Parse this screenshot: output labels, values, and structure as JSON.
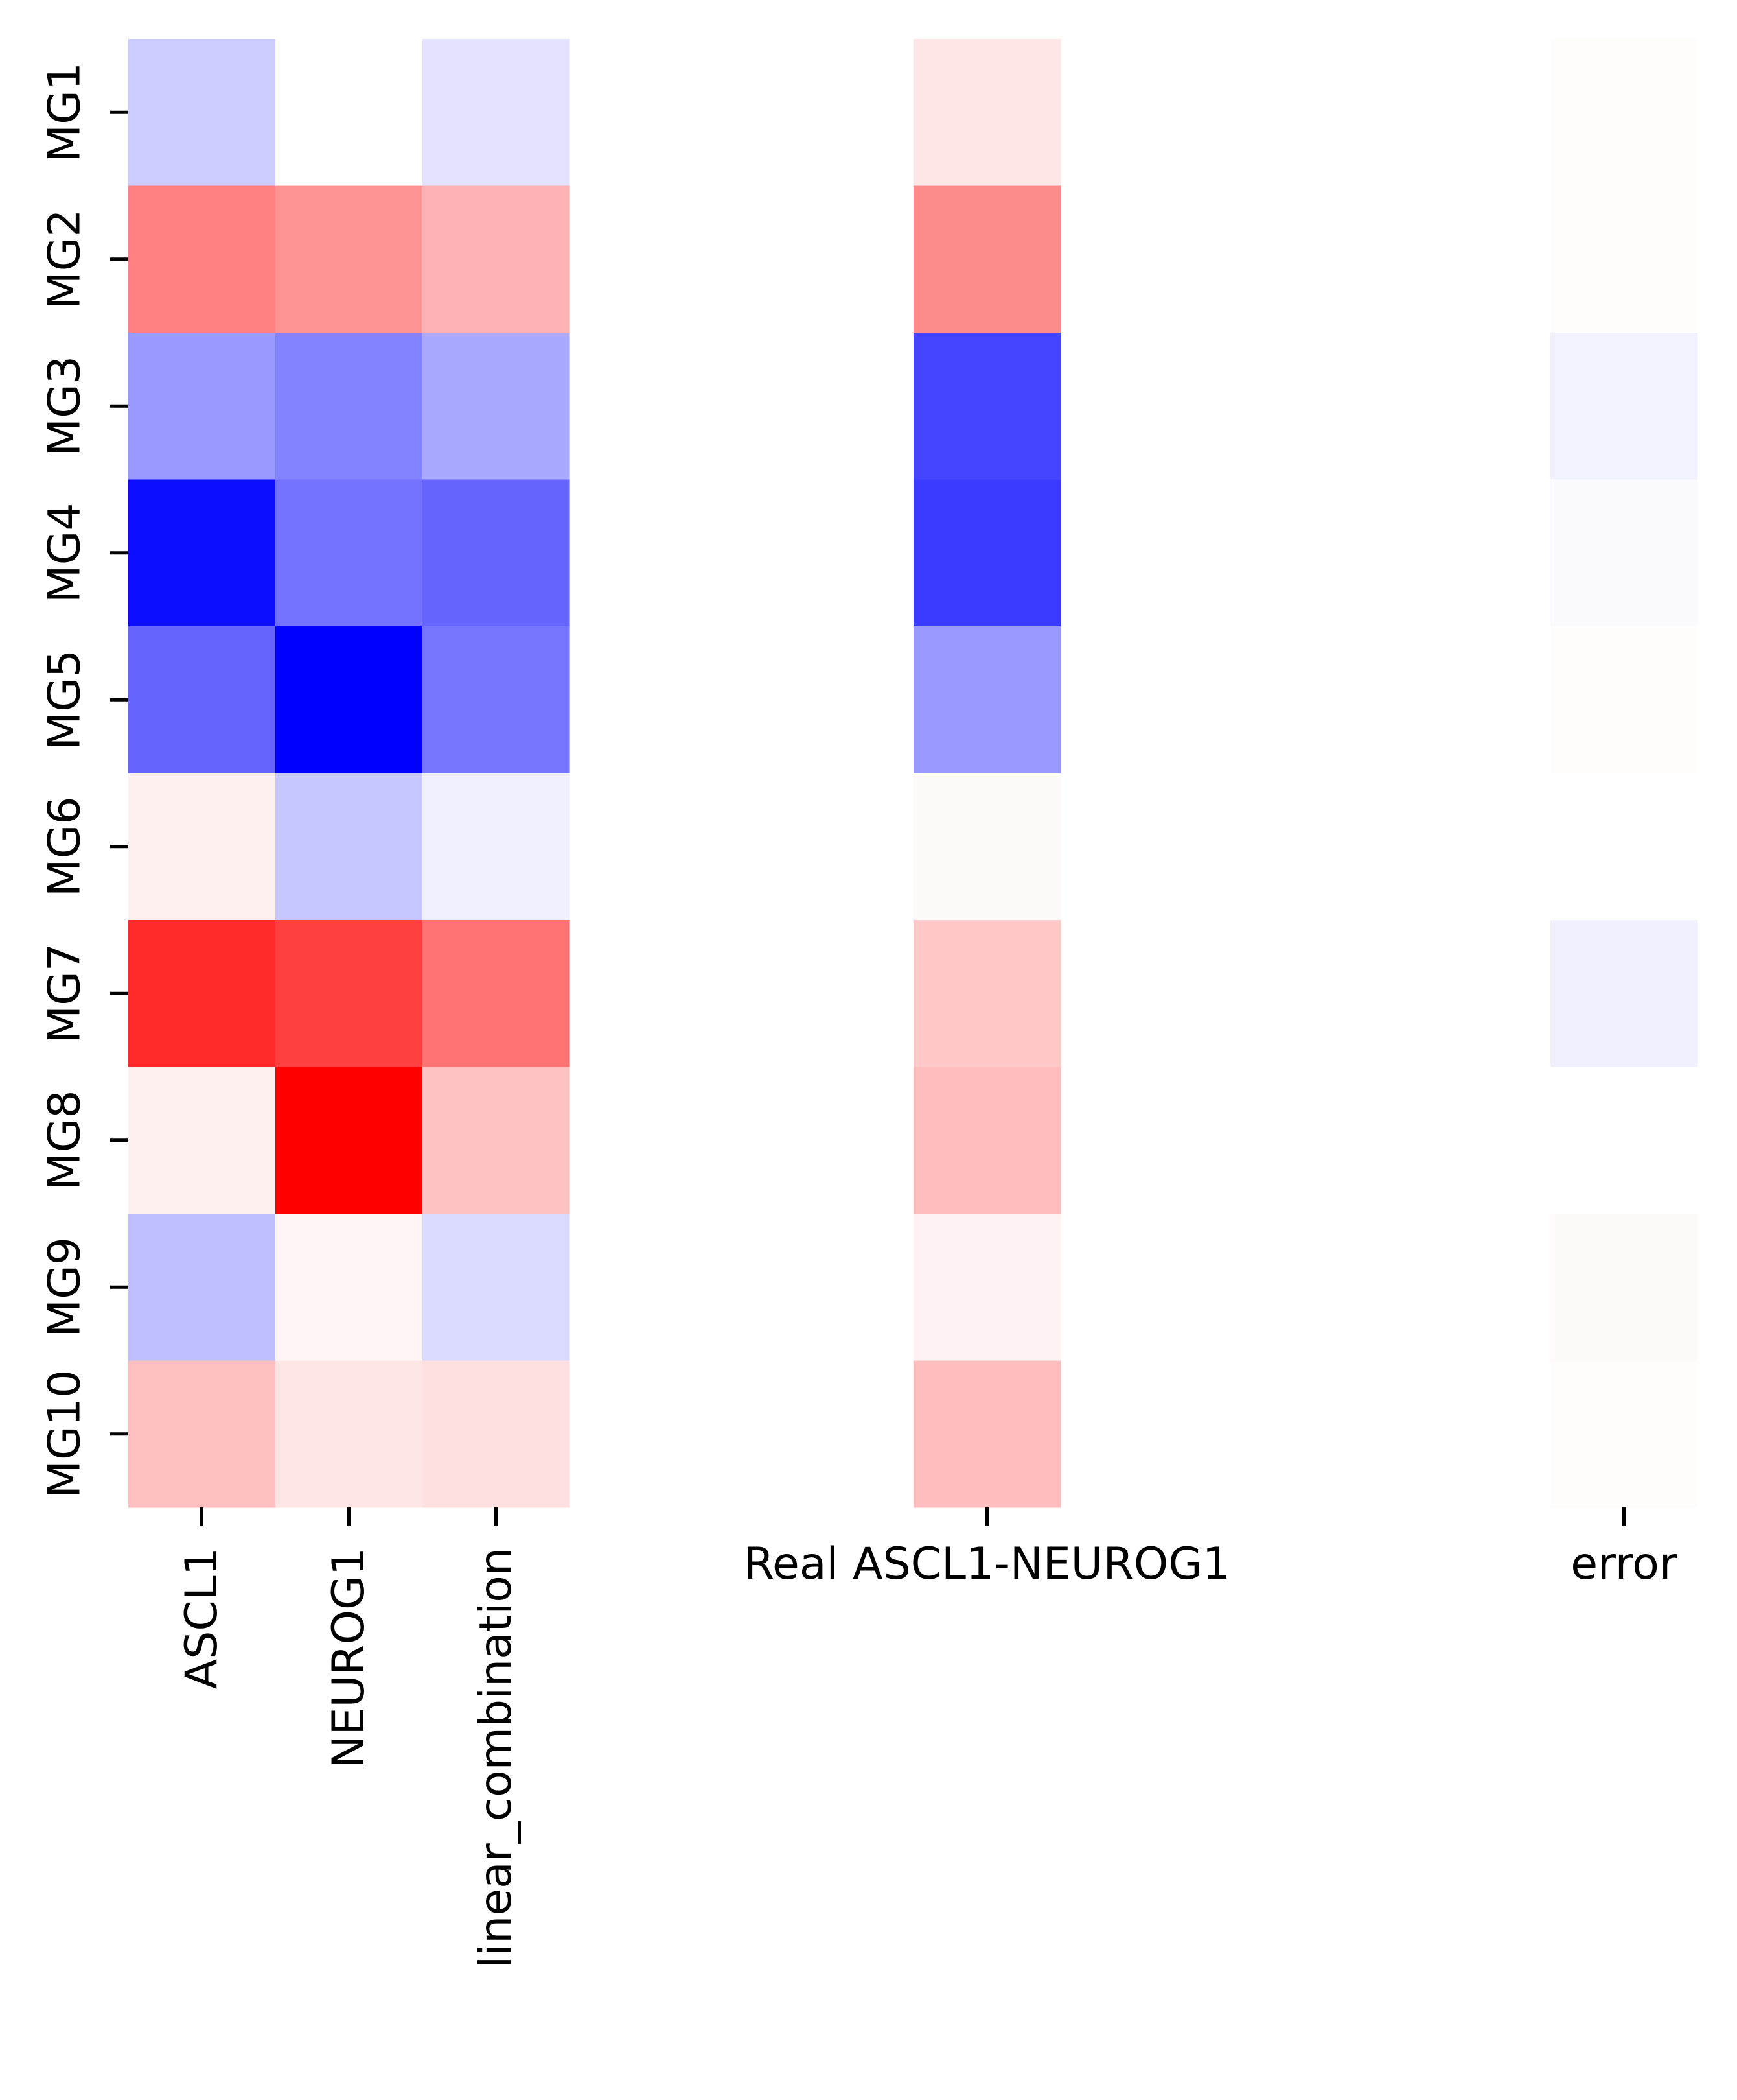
{
  "chart_data": {
    "type": "heatmap",
    "colormap": "bwr",
    "colorbar": false,
    "rows": [
      "MG1",
      "MG2",
      "MG3",
      "MG4",
      "MG5",
      "MG6",
      "MG7",
      "MG8",
      "MG9",
      "MG10"
    ],
    "panels": [
      {
        "columns": [
          "ASCL1",
          "NEUROG1",
          "linear_combination"
        ],
        "x_label_rotation": "vertical",
        "values": [
          [
            -0.2,
            0.0,
            -0.11
          ],
          [
            0.5,
            0.42,
            0.3
          ],
          [
            -0.4,
            -0.49,
            -0.34
          ],
          [
            -0.95,
            -0.55,
            -0.6
          ],
          [
            -0.6,
            -1.0,
            -0.54
          ],
          [
            0.06,
            -0.22,
            -0.06
          ],
          [
            0.83,
            0.75,
            0.55
          ],
          [
            0.06,
            1.0,
            0.24
          ],
          [
            -0.25,
            0.04,
            -0.14
          ],
          [
            0.25,
            0.1,
            0.12
          ]
        ]
      },
      {
        "columns": [
          "Real ASCL1-NEUROG1"
        ],
        "x_label_rotation": "horizontal",
        "values": [
          [
            0.1
          ],
          [
            0.45
          ],
          [
            -0.73
          ],
          [
            -0.77
          ],
          [
            -0.4
          ],
          [
            0.02
          ],
          [
            0.21
          ],
          [
            0.26
          ],
          [
            0.05
          ],
          [
            0.26
          ]
        ]
      },
      {
        "columns": [
          "error"
        ],
        "x_label_rotation": "horizontal",
        "values": [
          [
            0.01
          ],
          [
            0.01
          ],
          [
            -0.05
          ],
          [
            -0.02
          ],
          [
            0.01
          ],
          [
            0.0
          ],
          [
            -0.06
          ],
          [
            0.0
          ],
          [
            0.02
          ],
          [
            0.01
          ]
        ]
      }
    ],
    "vmin": -1,
    "vmax": 1
  }
}
